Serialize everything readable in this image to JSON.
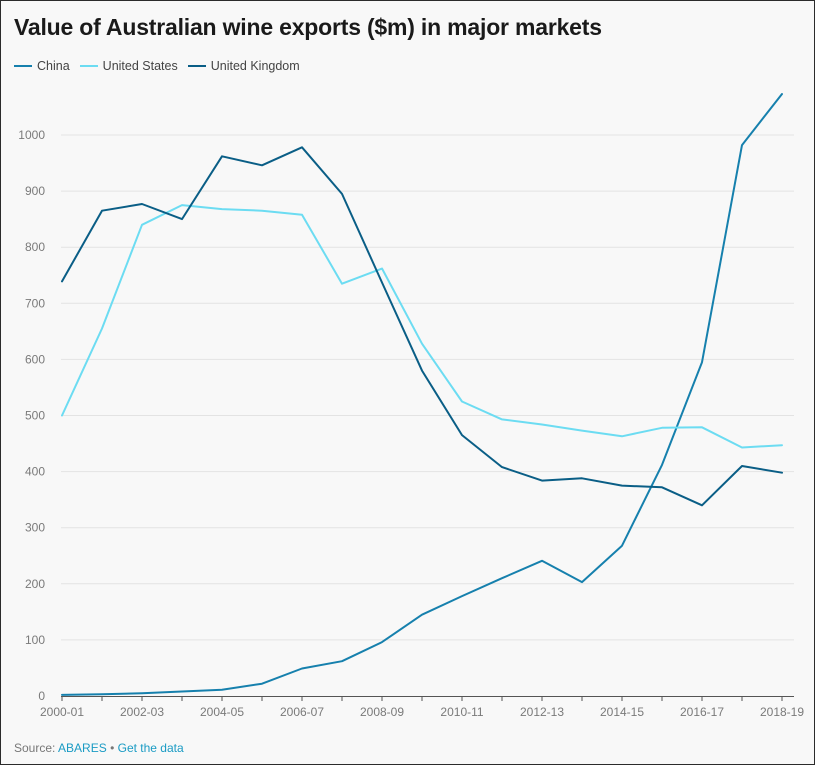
{
  "colors": {
    "china": "#1680ad",
    "united_states": "#6cdcf2",
    "united_kingdom": "#0a5e86",
    "grid": "#e3e3e3",
    "axis": "#555555",
    "tick_label": "#7a7a7a"
  },
  "footer": {
    "source_label": "Source:",
    "source_name": "ABARES",
    "separator": "•",
    "get_data": "Get the data"
  },
  "chart_data": {
    "type": "line",
    "title": "Value of Australian wine exports ($m) in major markets",
    "xlabel": "",
    "ylabel": "",
    "ylim": [
      0,
      1000
    ],
    "yticks": [
      0,
      100,
      200,
      300,
      400,
      500,
      600,
      700,
      800,
      900,
      1000
    ],
    "grid": true,
    "legend_position": "top-left",
    "categories": [
      "2000-01",
      "2001-02",
      "2002-03",
      "2003-04",
      "2004-05",
      "2005-06",
      "2006-07",
      "2007-08",
      "2008-09",
      "2009-10",
      "2010-11",
      "2011-12",
      "2012-13",
      "2013-14",
      "2014-15",
      "2015-16",
      "2016-17",
      "2017-18",
      "2018-19"
    ],
    "xtick_labels": [
      "2000-01",
      "2002-03",
      "2004-05",
      "2006-07",
      "2008-09",
      "2010-11",
      "2012-13",
      "2014-15",
      "2016-17",
      "2018-19"
    ],
    "series": [
      {
        "name": "China",
        "key": "china",
        "values": [
          2,
          3,
          5,
          8,
          11,
          22,
          49,
          62,
          96,
          145,
          178,
          210,
          241,
          203,
          268,
          412,
          595,
          982,
          1073
        ]
      },
      {
        "name": "United States",
        "key": "united_states",
        "values": [
          500,
          655,
          840,
          875,
          868,
          865,
          858,
          735,
          762,
          628,
          525,
          493,
          484,
          473,
          463,
          478,
          479,
          443,
          447
        ]
      },
      {
        "name": "United Kingdom",
        "key": "united_kingdom",
        "values": [
          739,
          865,
          877,
          850,
          962,
          946,
          978,
          895,
          737,
          580,
          465,
          408,
          384,
          388,
          375,
          372,
          340,
          410,
          398
        ]
      }
    ]
  }
}
